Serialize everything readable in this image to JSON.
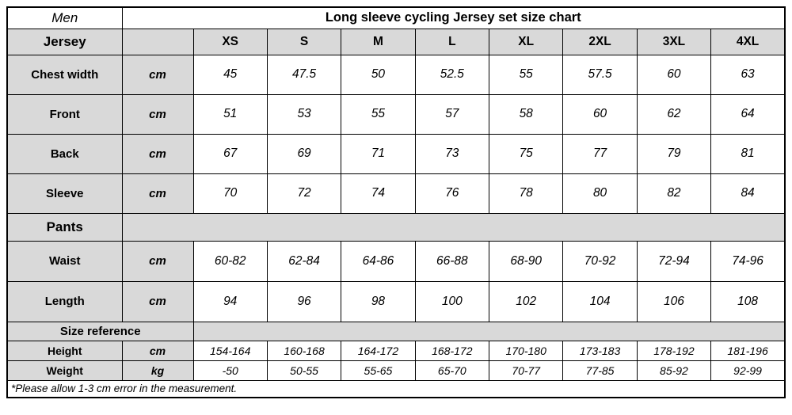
{
  "chart_data": {
    "type": "table",
    "corner_label": "Men",
    "title": "Long sleeve cycling Jersey set size chart",
    "sizes": [
      "XS",
      "S",
      "M",
      "L",
      "XL",
      "2XL",
      "3XL",
      "4XL"
    ],
    "sections": [
      {
        "name": "Jersey",
        "rows": [
          {
            "label": "Chest width",
            "unit": "cm",
            "values": [
              "45",
              "47.5",
              "50",
              "52.5",
              "55",
              "57.5",
              "60",
              "63"
            ]
          },
          {
            "label": "Front",
            "unit": "cm",
            "values": [
              "51",
              "53",
              "55",
              "57",
              "58",
              "60",
              "62",
              "64"
            ]
          },
          {
            "label": "Back",
            "unit": "cm",
            "values": [
              "67",
              "69",
              "71",
              "73",
              "75",
              "77",
              "79",
              "81"
            ]
          },
          {
            "label": "Sleeve",
            "unit": "cm",
            "values": [
              "70",
              "72",
              "74",
              "76",
              "78",
              "80",
              "82",
              "84"
            ]
          }
        ]
      },
      {
        "name": "Pants",
        "rows": [
          {
            "label": "Waist",
            "unit": "cm",
            "values": [
              "60-82",
              "62-84",
              "64-86",
              "66-88",
              "68-90",
              "70-92",
              "72-94",
              "74-96"
            ]
          },
          {
            "label": "Length",
            "unit": "cm",
            "values": [
              "94",
              "96",
              "98",
              "100",
              "102",
              "104",
              "106",
              "108"
            ]
          }
        ]
      },
      {
        "name": "Size reference",
        "rows": [
          {
            "label": "Height",
            "unit": "cm",
            "values": [
              "154-164",
              "160-168",
              "164-172",
              "168-172",
              "170-180",
              "173-183",
              "178-192",
              "181-196"
            ]
          },
          {
            "label": "Weight",
            "unit": "kg",
            "values": [
              "-50",
              "50-55",
              "55-65",
              "65-70",
              "70-77",
              "77-85",
              "85-92",
              "92-99"
            ]
          }
        ]
      }
    ],
    "footnote": "*Please allow 1-3 cm error in the measurement.",
    "colors": {
      "header_bg": "#d9d9d9",
      "body_bg": "#ffffff",
      "border": "#000000"
    }
  }
}
